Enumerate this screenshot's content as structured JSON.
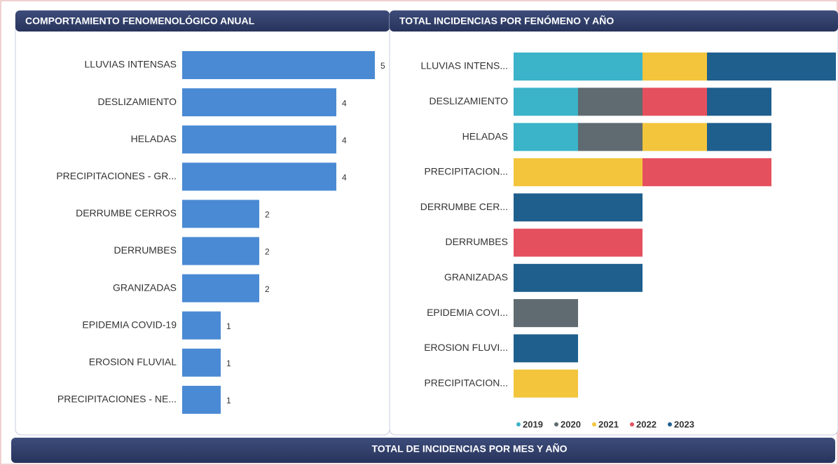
{
  "chart_data": [
    {
      "type": "hbar",
      "title": "COMPORTAMIENTO FENOMENOLÓGICO ANUAL",
      "categories": [
        "LLUVIAS INTENSAS",
        "DESLIZAMIENTO",
        "HELADAS",
        "PRECIPITACIONES - GR...",
        "DERRUMBE CERROS",
        "DERRUMBES",
        "GRANIZADAS",
        "EPIDEMIA COVID-19",
        "EROSION FLUVIAL",
        "PRECIPITACIONES - NE..."
      ],
      "values": [
        5,
        4,
        4,
        4,
        2,
        2,
        2,
        1,
        1,
        1
      ],
      "color": "#4a8ad4"
    },
    {
      "type": "stacked-hbar",
      "title": "TOTAL INCIDENCIAS POR FENÓMENO Y AÑO",
      "categories": [
        "LLUVIAS INTENS...",
        "DESLIZAMIENTO",
        "HELADAS",
        "PRECIPITACION...",
        "DERRUMBE CER...",
        "DERRUMBES",
        "GRANIZADAS",
        "EPIDEMIA COVI...",
        "EROSION FLUVI...",
        "PRECIPITACION..."
      ],
      "series": [
        {
          "name": "2019",
          "color": "#3bb3c9",
          "values": [
            2,
            1,
            1,
            null,
            null,
            null,
            null,
            null,
            null,
            null
          ]
        },
        {
          "name": "2020",
          "color": "#5f6b70",
          "values": [
            null,
            1,
            1,
            null,
            null,
            null,
            null,
            1,
            null,
            null
          ]
        },
        {
          "name": "2021",
          "color": "#f2c53d",
          "values": [
            1,
            null,
            1,
            2,
            null,
            null,
            null,
            null,
            null,
            1
          ]
        },
        {
          "name": "2022",
          "color": "#e5505e",
          "values": [
            null,
            1,
            null,
            2,
            null,
            2,
            null,
            null,
            null,
            null
          ]
        },
        {
          "name": "2023",
          "color": "#1e5f8e",
          "values": [
            2,
            1,
            1,
            null,
            2,
            null,
            2,
            null,
            1,
            null
          ]
        }
      ],
      "legend": "bottom"
    }
  ],
  "bottom_panel": {
    "title": "TOTAL DE INCIDENCIAS POR MES Y AÑO"
  }
}
